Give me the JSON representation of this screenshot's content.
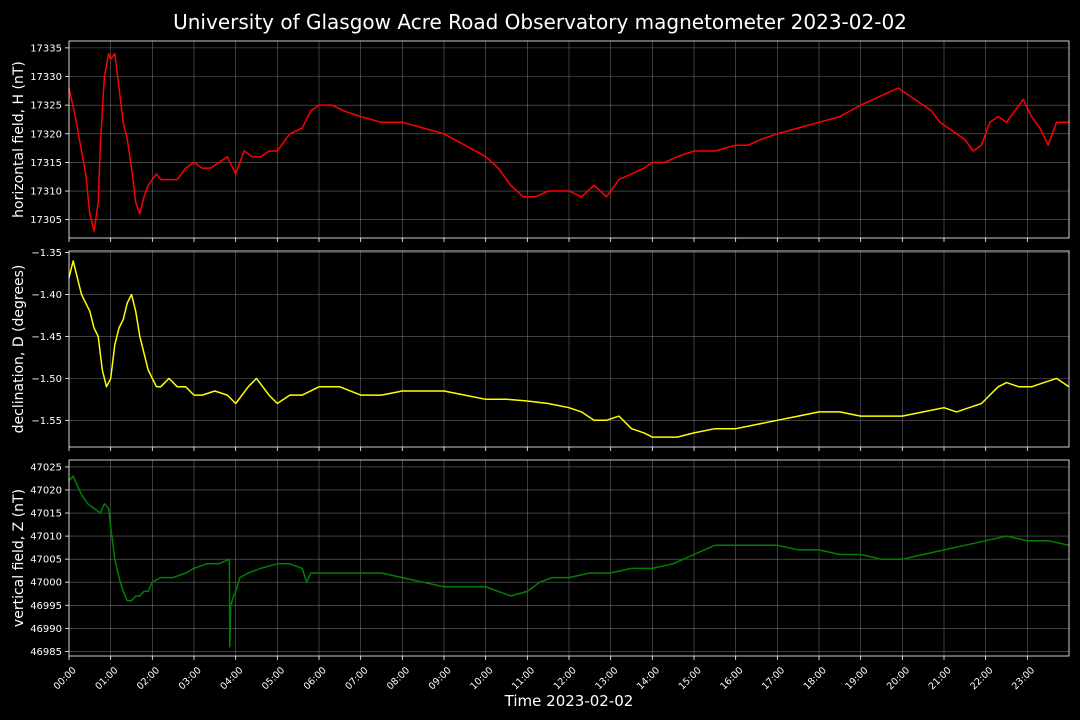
{
  "title": "University of Glasgow Acre Road Observatory magnetometer 2023-02-02",
  "colors": {
    "background": "#000000",
    "foreground": "#ffffff",
    "grid": "#808080"
  },
  "chart_data": [
    {
      "type": "line",
      "ylabel": "horizontal field, H (nT)",
      "ylim": [
        17301.8,
        17336.2
      ],
      "yticks": [
        17305,
        17310,
        17315,
        17320,
        17325,
        17330,
        17335
      ],
      "ytick_labels": [
        "17305",
        "17310",
        "17315",
        "17320",
        "17325",
        "17330",
        "17335"
      ],
      "xlim": [
        0,
        24
      ],
      "grid": true,
      "series": [
        {
          "color": "#ff0000",
          "x": [
            0,
            0.15,
            0.3,
            0.4,
            0.5,
            0.6,
            0.7,
            0.75,
            0.85,
            0.95,
            1.0,
            1.1,
            1.2,
            1.3,
            1.4,
            1.5,
            1.6,
            1.7,
            1.8,
            1.9,
            2.0,
            2.1,
            2.2,
            2.4,
            2.6,
            2.8,
            3.0,
            3.2,
            3.4,
            3.6,
            3.8,
            4.0,
            4.2,
            4.4,
            4.6,
            4.8,
            5.0,
            5.3,
            5.6,
            5.8,
            6.0,
            6.3,
            6.6,
            7.0,
            7.5,
            8.0,
            8.5,
            9.0,
            9.5,
            10.0,
            10.3,
            10.6,
            10.9,
            11.2,
            11.5,
            11.8,
            12.0,
            12.3,
            12.6,
            12.9,
            13.0,
            13.2,
            13.5,
            13.8,
            14.0,
            14.3,
            14.6,
            15.0,
            15.5,
            16.0,
            16.3,
            16.6,
            17.0,
            17.5,
            18.0,
            18.5,
            19.0,
            19.3,
            19.6,
            19.9,
            20.1,
            20.3,
            20.5,
            20.7,
            20.9,
            21.1,
            21.3,
            21.5,
            21.7,
            21.9,
            22.1,
            22.3,
            22.5,
            22.7,
            22.9,
            23.1,
            23.3,
            23.5,
            23.7,
            24.0
          ],
          "values": [
            17328,
            17323,
            17317,
            17313,
            17306,
            17303,
            17308,
            17318,
            17330,
            17334,
            17333,
            17334,
            17328,
            17322,
            17319,
            17314,
            17308,
            17306,
            17309,
            17311,
            17312,
            17313,
            17312,
            17312,
            17312,
            17314,
            17315,
            17314,
            17314,
            17315,
            17316,
            17313,
            17317,
            17316,
            17316,
            17317,
            17317,
            17320,
            17321,
            17324,
            17325,
            17325,
            17324,
            17323,
            17322,
            17322,
            17321,
            17320,
            17318,
            17316,
            17314,
            17311,
            17309,
            17309,
            17310,
            17310,
            17310,
            17309,
            17311,
            17309,
            17310,
            17312,
            17313,
            17314,
            17315,
            17315,
            17316,
            17317,
            17317,
            17318,
            17318,
            17319,
            17320,
            17321,
            17322,
            17323,
            17325,
            17326,
            17327,
            17328,
            17327,
            17326,
            17325,
            17324,
            17322,
            17321,
            17320,
            17319,
            17317,
            17318,
            17322,
            17323,
            17322,
            17324,
            17326,
            17323,
            17321,
            17318,
            17322,
            17322
          ]
        }
      ]
    },
    {
      "type": "line",
      "ylabel": "declination, D (degrees)",
      "ylim": [
        -1.5818,
        -1.3482
      ],
      "yticks": [
        -1.55,
        -1.5,
        -1.45,
        -1.4,
        -1.35
      ],
      "ytick_labels": [
        "−1.55",
        "−1.50",
        "−1.45",
        "−1.40",
        "−1.35"
      ],
      "xlim": [
        0,
        24
      ],
      "grid": true,
      "series": [
        {
          "color": "#ffff00",
          "x": [
            0,
            0.1,
            0.2,
            0.3,
            0.4,
            0.5,
            0.6,
            0.7,
            0.8,
            0.9,
            1.0,
            1.1,
            1.2,
            1.3,
            1.4,
            1.5,
            1.6,
            1.7,
            1.8,
            1.9,
            2.0,
            2.1,
            2.2,
            2.4,
            2.6,
            2.8,
            3.0,
            3.2,
            3.5,
            3.8,
            4.0,
            4.3,
            4.5,
            4.8,
            5.0,
            5.3,
            5.6,
            6.0,
            6.5,
            7.0,
            7.5,
            8.0,
            8.5,
            9.0,
            9.5,
            10.0,
            10.5,
            11.0,
            11.5,
            12.0,
            12.3,
            12.6,
            12.9,
            13.2,
            13.5,
            13.8,
            14.0,
            14.3,
            14.6,
            15.0,
            15.5,
            16.0,
            16.5,
            17.0,
            17.5,
            18.0,
            18.5,
            19.0,
            19.5,
            20.0,
            20.5,
            21.0,
            21.3,
            21.6,
            21.9,
            22.1,
            22.3,
            22.5,
            22.8,
            23.1,
            23.4,
            23.7,
            24.0
          ],
          "values": [
            -1.38,
            -1.36,
            -1.38,
            -1.4,
            -1.41,
            -1.42,
            -1.44,
            -1.45,
            -1.49,
            -1.51,
            -1.5,
            -1.46,
            -1.44,
            -1.43,
            -1.41,
            -1.4,
            -1.42,
            -1.45,
            -1.47,
            -1.49,
            -1.5,
            -1.51,
            -1.51,
            -1.5,
            -1.51,
            -1.51,
            -1.52,
            -1.52,
            -1.515,
            -1.52,
            -1.53,
            -1.51,
            -1.5,
            -1.52,
            -1.53,
            -1.52,
            -1.52,
            -1.51,
            -1.51,
            -1.52,
            -1.52,
            -1.515,
            -1.515,
            -1.515,
            -1.52,
            -1.525,
            -1.525,
            -1.527,
            -1.53,
            -1.535,
            -1.54,
            -1.55,
            -1.55,
            -1.545,
            -1.56,
            -1.565,
            -1.57,
            -1.57,
            -1.57,
            -1.565,
            -1.56,
            -1.56,
            -1.555,
            -1.55,
            -1.545,
            -1.54,
            -1.54,
            -1.545,
            -1.545,
            -1.545,
            -1.54,
            -1.535,
            -1.54,
            -1.535,
            -1.53,
            -1.52,
            -1.51,
            -1.505,
            -1.51,
            -1.51,
            -1.505,
            -1.5,
            -1.51
          ]
        }
      ]
    },
    {
      "type": "line",
      "ylabel": "vertical field, Z (nT)",
      "ylim": [
        46984,
        47026.5
      ],
      "yticks": [
        46985,
        46990,
        46995,
        47000,
        47005,
        47010,
        47015,
        47020,
        47025
      ],
      "ytick_labels": [
        "46985",
        "46990",
        "46995",
        "47000",
        "47005",
        "47010",
        "47015",
        "47020",
        "47025"
      ],
      "xlabel": "Time 2023-02-02",
      "xlim": [
        0,
        24
      ],
      "xticks": [
        0,
        1,
        2,
        3,
        4,
        5,
        6,
        7,
        8,
        9,
        10,
        11,
        12,
        13,
        14,
        15,
        16,
        17,
        18,
        19,
        20,
        21,
        22,
        23
      ],
      "xtick_labels": [
        "00:00",
        "01:00",
        "02:00",
        "03:00",
        "04:00",
        "05:00",
        "06:00",
        "07:00",
        "08:00",
        "09:00",
        "10:00",
        "11:00",
        "12:00",
        "13:00",
        "14:00",
        "15:00",
        "16:00",
        "17:00",
        "18:00",
        "19:00",
        "20:00",
        "21:00",
        "22:00",
        "23:00"
      ],
      "grid": true,
      "series": [
        {
          "color": "#008000",
          "x": [
            0,
            0.1,
            0.2,
            0.3,
            0.45,
            0.6,
            0.75,
            0.85,
            0.95,
            1.0,
            1.1,
            1.2,
            1.3,
            1.4,
            1.5,
            1.6,
            1.7,
            1.8,
            1.9,
            2.0,
            2.2,
            2.5,
            2.8,
            3.0,
            3.3,
            3.6,
            3.85,
            3.86,
            3.88,
            3.95,
            4.0,
            4.1,
            4.3,
            4.6,
            5.0,
            5.3,
            5.6,
            5.7,
            5.8,
            6.0,
            6.5,
            7.0,
            7.5,
            8.0,
            8.5,
            9.0,
            9.5,
            10.0,
            10.3,
            10.6,
            11.0,
            11.3,
            11.6,
            12.0,
            12.5,
            13.0,
            13.5,
            14.0,
            14.5,
            15.0,
            15.5,
            16.0,
            16.5,
            17.0,
            17.5,
            18.0,
            18.5,
            19.0,
            19.5,
            20.0,
            20.5,
            21.0,
            21.5,
            22.0,
            22.5,
            23.0,
            23.5,
            24.0
          ],
          "values": [
            47022,
            47023,
            47021,
            47019,
            47017,
            47016,
            47015,
            47017,
            47016,
            47012,
            47005,
            47001,
            46998,
            46996,
            46996,
            46997,
            46997,
            46998,
            46998,
            47000,
            47001,
            47001,
            47002,
            47003,
            47004,
            47004,
            47005,
            46986,
            46995,
            46997,
            46998,
            47001,
            47002,
            47003,
            47004,
            47004,
            47003,
            47000,
            47002,
            47002,
            47002,
            47002,
            47002,
            47001,
            47000,
            46999,
            46999,
            46999,
            46998,
            46997,
            46998,
            47000,
            47001,
            47001,
            47002,
            47002,
            47003,
            47003,
            47004,
            47006,
            47008,
            47008,
            47008,
            47008,
            47007,
            47007,
            47006,
            47006,
            47005,
            47005,
            47006,
            47007,
            47008,
            47009,
            47010,
            47009,
            47009,
            47008
          ]
        }
      ]
    }
  ]
}
